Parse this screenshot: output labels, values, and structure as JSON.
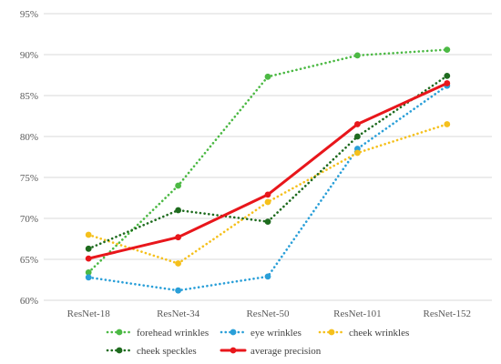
{
  "chart_data": {
    "type": "line",
    "categories": [
      "ResNet-18",
      "ResNet-34",
      "ResNet-50",
      "ResNet-101",
      "ResNet-152"
    ],
    "ylim": [
      60,
      95
    ],
    "y_ticks": [
      "60%",
      "65%",
      "70%",
      "75%",
      "80%",
      "85%",
      "90%",
      "95%"
    ],
    "grid": "horizontal",
    "legend_position": "bottom",
    "series": [
      {
        "name": "forehead wrinkles",
        "values": [
          63.4,
          74.0,
          87.3,
          89.9,
          90.6
        ],
        "color": "#4cb944",
        "style": "dotted"
      },
      {
        "name": "eye wrinkles",
        "values": [
          62.8,
          61.2,
          62.9,
          78.5,
          86.2
        ],
        "color": "#2a9fd8",
        "style": "dotted"
      },
      {
        "name": "cheek wrinkles",
        "values": [
          68.0,
          64.5,
          72.0,
          78.0,
          81.5
        ],
        "color": "#f5c01c",
        "style": "dotted"
      },
      {
        "name": "cheek speckles",
        "values": [
          66.3,
          71.0,
          69.6,
          80.0,
          87.4
        ],
        "color": "#1e6b1e",
        "style": "dotted"
      },
      {
        "name": "average precision",
        "values": [
          65.1,
          67.7,
          72.9,
          81.5,
          86.5
        ],
        "color": "#e8161b",
        "style": "solid"
      }
    ]
  }
}
